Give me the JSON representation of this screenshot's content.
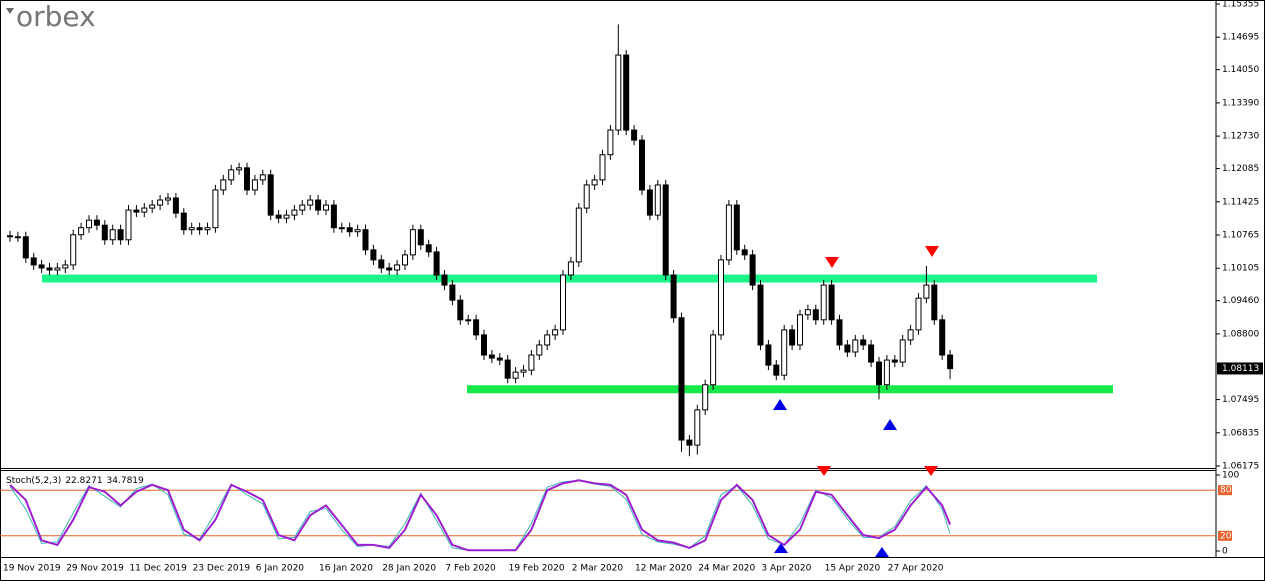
{
  "logo": "orbex",
  "chart_data": [
    {
      "type": "candlestick",
      "categories": [
        "19 Nov 2019",
        null,
        null,
        null,
        null,
        null,
        null,
        null,
        "29 Nov 2019",
        null,
        null,
        null,
        null,
        null,
        null,
        null,
        "11 Dec 2019",
        null,
        null,
        null,
        null,
        null,
        null,
        null,
        "23 Dec 2019",
        null,
        null,
        null,
        null,
        null,
        null,
        null,
        "6 Jan 2020",
        null,
        null,
        null,
        null,
        null,
        null,
        null,
        "16 Jan 2020",
        null,
        null,
        null,
        null,
        null,
        null,
        null,
        "28 Jan 2020",
        null,
        null,
        null,
        null,
        null,
        null,
        null,
        "7 Feb 2020",
        null,
        null,
        null,
        null,
        null,
        null,
        null,
        "19 Feb 2020",
        null,
        null,
        null,
        null,
        null,
        null,
        null,
        "2 Mar 2020",
        null,
        null,
        null,
        null,
        null,
        null,
        null,
        "12 Mar 2020",
        null,
        null,
        null,
        null,
        null,
        null,
        null,
        "24 Mar 2020",
        null,
        null,
        null,
        null,
        null,
        null,
        null,
        "3 Apr 2020",
        null,
        null,
        null,
        null,
        null,
        null,
        null,
        "15 Apr 2020",
        null,
        null,
        null,
        null,
        null,
        null,
        null,
        "27 Apr 2020",
        null,
        null,
        null,
        null,
        null,
        null,
        null
      ],
      "open": [
        1.1075,
        1.1073,
        1.1073,
        1.1031,
        1.1017,
        1.1011,
        1.1007,
        1.1011,
        1.1017,
        1.1077,
        1.1091,
        1.1106,
        1.1096,
        1.1067,
        1.1087,
        1.1067,
        1.1126,
        1.1122,
        1.113,
        1.1136,
        1.1146,
        1.115,
        1.112,
        1.1087,
        1.1091,
        1.1087,
        1.1091,
        1.1166,
        1.1186,
        1.1206,
        1.121,
        1.1166,
        1.1186,
        1.1196,
        1.1116,
        1.111,
        1.1116,
        1.1126,
        1.1136,
        1.1146,
        1.1126,
        1.1136,
        1.1091,
        1.1091,
        1.1083,
        1.1087,
        1.1047,
        1.1027,
        1.1011,
        1.1007,
        1.1017,
        1.1037,
        1.1087,
        1.1057,
        1.1043,
        1.0997,
        1.0977,
        1.0947,
        1.0908,
        1.0908,
        1.0878,
        1.0838,
        1.0832,
        1.0828,
        1.0792,
        1.0804,
        1.0808,
        1.0838,
        1.0858,
        1.0878,
        1.0888,
        1.0997,
        1.1023,
        1.113,
        1.1176,
        1.1186,
        1.1236,
        1.1285,
        1.1434,
        1.1285,
        1.1265,
        1.1166,
        1.1116,
        1.1176,
        1.0997,
        1.0912,
        1.0669,
        1.0659,
        1.0729,
        1.0779,
        1.0878,
        1.1027,
        1.1136,
        1.1047,
        1.1037,
        1.0977,
        1.0858,
        1.0818,
        1.0798,
        1.0888,
        1.0858,
        1.0918,
        1.0928,
        1.0908,
        1.0977,
        1.0908,
        1.0858,
        1.0844,
        1.0868,
        1.0858,
        1.0824,
        1.0779,
        1.0828,
        1.0824,
        1.0868,
        1.0888,
        1.0951,
        1.0977,
        1.0908,
        1.0838
      ],
      "high": [
        1.1085,
        1.1083,
        1.1083,
        1.1041,
        1.1027,
        1.1021,
        1.1021,
        1.1027,
        1.1087,
        1.1101,
        1.1116,
        1.1116,
        1.1106,
        1.1097,
        1.1097,
        1.1136,
        1.1136,
        1.114,
        1.1146,
        1.1156,
        1.116,
        1.116,
        1.113,
        1.1101,
        1.1101,
        1.1101,
        1.1176,
        1.1196,
        1.1216,
        1.122,
        1.122,
        1.1196,
        1.1206,
        1.1206,
        1.1126,
        1.1126,
        1.1136,
        1.1146,
        1.1156,
        1.1156,
        1.1146,
        1.1146,
        1.1101,
        1.1101,
        1.1097,
        1.1097,
        1.1057,
        1.1037,
        1.1021,
        1.1027,
        1.1047,
        1.1097,
        1.1097,
        1.1067,
        1.1053,
        1.1007,
        1.0987,
        1.0957,
        1.0918,
        1.0918,
        1.0888,
        1.0848,
        1.0842,
        1.0838,
        1.0814,
        1.0818,
        1.0848,
        1.0868,
        1.0888,
        1.0898,
        1.1007,
        1.1033,
        1.114,
        1.1186,
        1.1196,
        1.1246,
        1.1295,
        1.1495,
        1.1444,
        1.1295,
        1.1275,
        1.1176,
        1.1186,
        1.1186,
        1.1007,
        1.0922,
        1.0679,
        1.0739,
        1.0789,
        1.0888,
        1.1037,
        1.1146,
        1.1146,
        1.1057,
        1.1047,
        1.0987,
        1.0868,
        1.0828,
        1.0898,
        1.0898,
        1.0928,
        1.0938,
        1.0938,
        1.0987,
        1.0987,
        1.0918,
        1.0868,
        1.0878,
        1.0878,
        1.0868,
        1.0834,
        1.0838,
        1.0838,
        1.0878,
        1.0898,
        1.0961,
        1.1015,
        1.0987,
        1.0918,
        1.0848
      ],
      "low": [
        1.1063,
        1.1063,
        1.1021,
        1.1007,
        1.1001,
        1.0997,
        1.0997,
        1.1001,
        1.1007,
        1.1067,
        1.1081,
        1.1086,
        1.1057,
        1.1057,
        1.1057,
        1.1057,
        1.1112,
        1.1112,
        1.112,
        1.1126,
        1.1136,
        1.111,
        1.1077,
        1.1077,
        1.1077,
        1.1077,
        1.1081,
        1.1156,
        1.1176,
        1.1196,
        1.1156,
        1.1156,
        1.1176,
        1.1106,
        1.11,
        1.11,
        1.1106,
        1.1116,
        1.1126,
        1.1116,
        1.1116,
        1.1081,
        1.1081,
        1.1073,
        1.1073,
        1.1037,
        1.1017,
        1.1001,
        1.0997,
        1.0997,
        1.1007,
        1.1027,
        1.1047,
        1.1033,
        1.0987,
        1.0967,
        1.0937,
        1.0898,
        1.0898,
        1.0868,
        1.0828,
        1.0822,
        1.0818,
        1.0782,
        1.0782,
        1.0794,
        1.0798,
        1.0828,
        1.0848,
        1.0868,
        1.0878,
        1.0987,
        1.1013,
        1.112,
        1.1166,
        1.1176,
        1.1226,
        1.1275,
        1.1275,
        1.1255,
        1.1156,
        1.1106,
        1.1106,
        1.0987,
        1.0902,
        1.0645,
        1.0637,
        1.064,
        1.0719,
        1.0769,
        1.0868,
        1.1017,
        1.1037,
        1.1027,
        1.0967,
        1.0848,
        1.0808,
        1.0788,
        1.0788,
        1.0848,
        1.0848,
        1.0908,
        1.0898,
        1.0898,
        1.0898,
        1.0848,
        1.0834,
        1.0834,
        1.0848,
        1.0814,
        1.075,
        1.0769,
        1.0814,
        1.0814,
        1.0858,
        1.0878,
        1.0941,
        1.0898,
        1.0828,
        1.079
      ],
      "close": [
        1.1073,
        1.1073,
        1.1031,
        1.1017,
        1.1011,
        1.1007,
        1.1011,
        1.1017,
        1.1077,
        1.1091,
        1.1106,
        1.1096,
        1.1067,
        1.1087,
        1.1067,
        1.1126,
        1.1122,
        1.113,
        1.1136,
        1.1146,
        1.115,
        1.112,
        1.1087,
        1.1091,
        1.1087,
        1.1091,
        1.1166,
        1.1186,
        1.1206,
        1.121,
        1.1166,
        1.1186,
        1.1196,
        1.1116,
        1.111,
        1.1116,
        1.1126,
        1.1136,
        1.1146,
        1.1126,
        1.1136,
        1.1091,
        1.1091,
        1.1083,
        1.1087,
        1.1047,
        1.1027,
        1.1011,
        1.1007,
        1.1017,
        1.1037,
        1.1087,
        1.1057,
        1.1043,
        1.0997,
        1.0977,
        1.0947,
        1.0908,
        1.0908,
        1.0878,
        1.0838,
        1.0832,
        1.0828,
        1.0792,
        1.0804,
        1.0808,
        1.0838,
        1.0858,
        1.0878,
        1.0888,
        1.0997,
        1.1023,
        1.113,
        1.1176,
        1.1186,
        1.1236,
        1.1285,
        1.1434,
        1.1285,
        1.1265,
        1.1166,
        1.1116,
        1.1176,
        1.0997,
        1.0912,
        1.0669,
        1.0659,
        1.0729,
        1.0779,
        1.0878,
        1.1027,
        1.1136,
        1.1047,
        1.1037,
        1.0977,
        1.0858,
        1.0818,
        1.0798,
        1.0888,
        1.0858,
        1.0918,
        1.0928,
        1.0908,
        1.0977,
        1.0908,
        1.0858,
        1.0844,
        1.0868,
        1.0858,
        1.0824,
        1.0779,
        1.0828,
        1.0824,
        1.0868,
        1.0888,
        1.0951,
        1.0977,
        1.0908,
        1.0838,
        1.0811
      ],
      "current_price": 1.08113,
      "levels": [
        {
          "value": 1.099,
          "color": "#1cf58a"
        },
        {
          "value": 1.077,
          "color": "#17e84a"
        }
      ],
      "ylim": [
        1.06175,
        1.15355
      ],
      "yticks": [
        1.15355,
        1.14695,
        {
          "value": 1.1405,
          "label": "1.14050"
        },
        {
          "value": 1.1339,
          "label": "1.13390"
        },
        {
          "value": 1.1273,
          "label": "1.12730"
        },
        1.12085,
        1.11425,
        1.10765,
        1.10105,
        {
          "value": 1.0946,
          "label": "1.09460"
        },
        {
          "value": 1.088,
          "label": "1.08800"
        },
        1.07495,
        1.06835,
        1.06175
      ]
    },
    {
      "type": "line",
      "title": "Stoch(5,2,3)",
      "x": [
        0,
        2,
        4,
        6,
        8,
        10,
        12,
        14,
        16,
        18,
        20,
        22,
        24,
        26,
        28,
        30,
        32,
        34,
        36,
        38,
        40,
        42,
        44,
        46,
        48,
        50,
        52,
        54,
        56,
        58,
        60,
        62,
        64,
        66,
        68,
        70,
        72,
        74,
        76,
        78,
        80,
        82,
        84,
        86,
        88,
        90,
        92,
        94,
        96,
        98,
        100,
        102,
        104,
        106,
        108,
        110,
        112,
        114,
        116,
        118,
        119
      ],
      "series": [
        {
          "name": "main",
          "color": "#3cb4b4",
          "values": [
            85,
            55,
            10,
            12,
            50,
            86,
            72,
            58,
            82,
            88,
            74,
            22,
            16,
            50,
            88,
            74,
            62,
            16,
            18,
            52,
            56,
            28,
            6,
            8,
            6,
            36,
            76,
            40,
            4,
            1,
            1,
            1,
            2,
            36,
            84,
            91,
            93,
            88,
            85,
            68,
            22,
            12,
            9,
            4,
            20,
            74,
            86,
            60,
            16,
            8,
            36,
            80,
            70,
            42,
            18,
            18,
            32,
            66,
            86,
            55,
            22.8271
          ]
        },
        {
          "name": "signal",
          "color": "#9b1fd0",
          "values": [
            87,
            67,
            14,
            8,
            41,
            84,
            78,
            60,
            78,
            87,
            80,
            28,
            14,
            41,
            87,
            78,
            67,
            21,
            14,
            47,
            60,
            34,
            8,
            8,
            4,
            28,
            74,
            47,
            8,
            1,
            1,
            1,
            1,
            28,
            80,
            89,
            93,
            89,
            87,
            74,
            28,
            14,
            11,
            4,
            14,
            67,
            87,
            67,
            21,
            8,
            28,
            78,
            74,
            47,
            21,
            17,
            28,
            60,
            84,
            60,
            34.7819
          ]
        }
      ],
      "levels": [
        {
          "value": 80,
          "color": "#e8602c"
        },
        {
          "value": 20,
          "color": "#e8602c"
        }
      ],
      "ylim": [
        0,
        100
      ],
      "yticks": [
        0,
        100
      ]
    }
  ]
}
